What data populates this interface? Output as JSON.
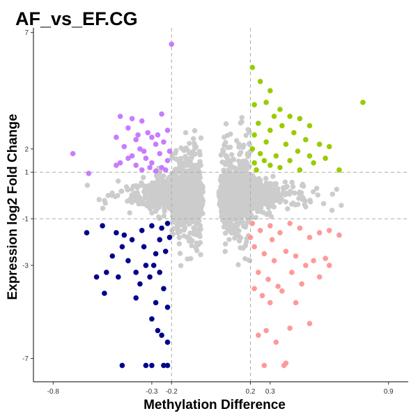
{
  "chart_data": {
    "type": "scatter",
    "title": "AF_vs_EF.CG",
    "xlabel": "Methylation Difference",
    "ylabel": "Expression log2 Fold Change",
    "xlim": [
      -0.9,
      1.0
    ],
    "ylim": [
      -8.0,
      7.2
    ],
    "x_ticks": [
      -0.8,
      -0.3,
      -0.2,
      0.2,
      0.3,
      0.9
    ],
    "x_tick_labels": [
      "-0.8",
      "-0.3",
      "-0.2",
      "0.2",
      "0.3",
      "0.9"
    ],
    "y_ticks": [
      -7,
      -3,
      -1,
      1,
      2,
      7
    ],
    "y_tick_labels": [
      "-7",
      "-3",
      "-1",
      "1",
      "2",
      "7"
    ],
    "thresholds": {
      "x": [
        -0.2,
        0.2
      ],
      "y": [
        -1,
        1
      ]
    },
    "grid": false,
    "legend": "none",
    "colors": {
      "hyper_up": "#99cc00",
      "hypo_up": "#c77cff",
      "hypo_down": "#00008b",
      "hyper_down": "#ff9999",
      "not_significant": "#cccccc"
    },
    "series": [
      {
        "key": "hypo_up",
        "points": [
          [
            -0.2,
            6.5
          ],
          [
            -0.46,
            3.4
          ],
          [
            -0.4,
            3.3
          ],
          [
            -0.35,
            3.2
          ],
          [
            -0.25,
            3.5
          ],
          [
            -0.42,
            2.9
          ],
          [
            -0.32,
            2.7
          ],
          [
            -0.22,
            2.8
          ],
          [
            -0.48,
            2.5
          ],
          [
            -0.38,
            2.4
          ],
          [
            -0.3,
            2.5
          ],
          [
            -0.24,
            2.3
          ],
          [
            -0.44,
            2.1
          ],
          [
            -0.36,
            2.0
          ],
          [
            -0.28,
            2.2
          ],
          [
            -0.21,
            1.9
          ],
          [
            -0.4,
            1.7
          ],
          [
            -0.33,
            1.6
          ],
          [
            -0.26,
            1.8
          ],
          [
            -0.22,
            1.5
          ],
          [
            -0.46,
            1.4
          ],
          [
            -0.38,
            1.3
          ],
          [
            -0.3,
            1.4
          ],
          [
            -0.25,
            1.2
          ],
          [
            -0.35,
            1.1
          ],
          [
            -0.28,
            1.05
          ],
          [
            -0.23,
            1.1
          ],
          [
            -0.62,
            0.95
          ],
          [
            -0.7,
            1.8
          ],
          [
            -0.48,
            1.3
          ],
          [
            -0.42,
            1.6
          ],
          [
            -0.34,
            1.9
          ],
          [
            -0.27,
            2.6
          ],
          [
            -0.31,
            1.2
          ],
          [
            -0.37,
            2.6
          ]
        ]
      },
      {
        "key": "hyper_up",
        "points": [
          [
            0.21,
            5.5
          ],
          [
            0.25,
            4.9
          ],
          [
            0.3,
            4.5
          ],
          [
            0.28,
            4.0
          ],
          [
            0.35,
            3.7
          ],
          [
            0.22,
            3.9
          ],
          [
            0.32,
            3.4
          ],
          [
            0.4,
            3.4
          ],
          [
            0.45,
            3.3
          ],
          [
            0.24,
            3.1
          ],
          [
            0.36,
            3.0
          ],
          [
            0.5,
            3.0
          ],
          [
            0.42,
            2.7
          ],
          [
            0.3,
            2.8
          ],
          [
            0.22,
            2.6
          ],
          [
            0.55,
            2.2
          ],
          [
            0.48,
            2.4
          ],
          [
            0.38,
            2.2
          ],
          [
            0.28,
            2.3
          ],
          [
            0.21,
            2.0
          ],
          [
            0.6,
            2.1
          ],
          [
            0.44,
            1.9
          ],
          [
            0.33,
            1.7
          ],
          [
            0.25,
            1.8
          ],
          [
            0.22,
            1.4
          ],
          [
            0.4,
            1.5
          ],
          [
            0.52,
            1.4
          ],
          [
            0.3,
            1.3
          ],
          [
            0.23,
            1.1
          ],
          [
            0.45,
            1.1
          ],
          [
            0.58,
            1.6
          ],
          [
            0.35,
            1.2
          ],
          [
            0.27,
            1.5
          ],
          [
            0.65,
            1.1
          ],
          [
            0.77,
            4.0
          ],
          [
            0.5,
            1.7
          ]
        ]
      },
      {
        "key": "hypo_down",
        "points": [
          [
            -0.63,
            -1.6
          ],
          [
            -0.55,
            -1.3
          ],
          [
            -0.48,
            -1.6
          ],
          [
            -0.45,
            -2.2
          ],
          [
            -0.4,
            -1.9
          ],
          [
            -0.35,
            -1.5
          ],
          [
            -0.3,
            -1.3
          ],
          [
            -0.25,
            -1.4
          ],
          [
            -0.22,
            -1.2
          ],
          [
            -0.5,
            -2.6
          ],
          [
            -0.42,
            -2.8
          ],
          [
            -0.38,
            -3.3
          ],
          [
            -0.33,
            -3.0
          ],
          [
            -0.28,
            -2.5
          ],
          [
            -0.23,
            -2.4
          ],
          [
            -0.21,
            -1.8
          ],
          [
            -0.53,
            -3.3
          ],
          [
            -0.58,
            -3.5
          ],
          [
            -0.47,
            -3.5
          ],
          [
            -0.36,
            -3.8
          ],
          [
            -0.31,
            -3.5
          ],
          [
            -0.26,
            -3.3
          ],
          [
            -0.24,
            -4.0
          ],
          [
            -0.38,
            -4.4
          ],
          [
            -0.28,
            -4.6
          ],
          [
            -0.22,
            -4.8
          ],
          [
            -0.3,
            -5.3
          ],
          [
            -0.27,
            -5.8
          ],
          [
            -0.25,
            -6.0
          ],
          [
            -0.22,
            -6.3
          ],
          [
            -0.45,
            -7.3
          ],
          [
            -0.33,
            -7.3
          ],
          [
            -0.3,
            -7.3
          ],
          [
            -0.24,
            -7.3
          ],
          [
            -0.22,
            -7.3
          ],
          [
            -0.54,
            -4.2
          ],
          [
            -0.34,
            -2.2
          ],
          [
            -0.26,
            -1.9
          ],
          [
            -0.29,
            -3.0
          ],
          [
            -0.44,
            -1.7
          ]
        ]
      },
      {
        "key": "hyper_down",
        "points": [
          [
            0.21,
            -1.2
          ],
          [
            0.25,
            -1.5
          ],
          [
            0.3,
            -1.3
          ],
          [
            0.35,
            -1.6
          ],
          [
            0.4,
            -1.2
          ],
          [
            0.45,
            -1.4
          ],
          [
            0.5,
            -1.8
          ],
          [
            0.55,
            -1.6
          ],
          [
            0.6,
            -1.5
          ],
          [
            0.65,
            -1.7
          ],
          [
            0.22,
            -2.2
          ],
          [
            0.27,
            -2.5
          ],
          [
            0.32,
            -2.8
          ],
          [
            0.38,
            -2.4
          ],
          [
            0.43,
            -2.6
          ],
          [
            0.48,
            -3.0
          ],
          [
            0.52,
            -2.8
          ],
          [
            0.58,
            -2.7
          ],
          [
            0.24,
            -3.3
          ],
          [
            0.29,
            -3.6
          ],
          [
            0.34,
            -3.9
          ],
          [
            0.41,
            -3.3
          ],
          [
            0.46,
            -3.8
          ],
          [
            0.55,
            -3.5
          ],
          [
            0.22,
            -4.0
          ],
          [
            0.26,
            -4.3
          ],
          [
            0.3,
            -4.6
          ],
          [
            0.36,
            -4.1
          ],
          [
            0.43,
            -4.6
          ],
          [
            0.28,
            -5.8
          ],
          [
            0.24,
            -6.0
          ],
          [
            0.4,
            -5.7
          ],
          [
            0.5,
            -5.5
          ],
          [
            0.33,
            -6.3
          ],
          [
            0.27,
            -7.3
          ],
          [
            0.37,
            -7.3
          ],
          [
            0.38,
            -7.2
          ],
          [
            0.6,
            -3.0
          ],
          [
            0.2,
            -1.8
          ],
          [
            0.31,
            -1.9
          ]
        ]
      }
    ]
  }
}
